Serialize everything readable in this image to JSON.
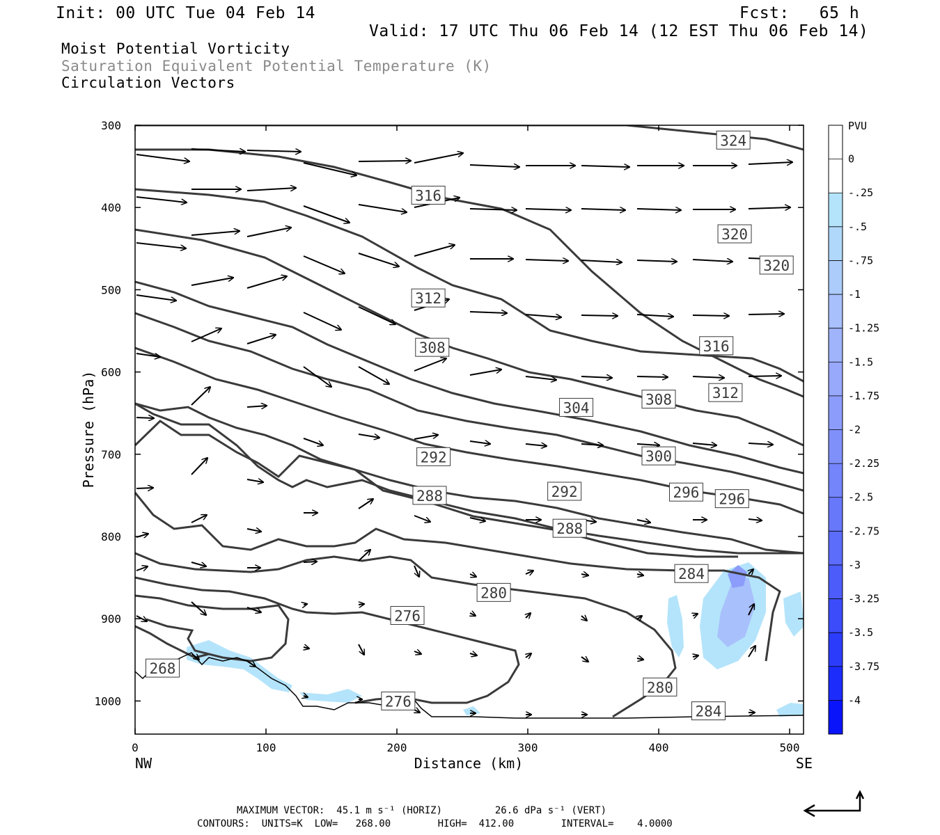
{
  "header": {
    "init": "Init: 00 UTC Tue 04 Feb 14",
    "fcst": "Fcst:   65 h",
    "valid": "Valid: 17 UTC Thu 06 Feb 14 (12 EST Thu 06 Feb 14)",
    "field1": "Moist Potential Vorticity",
    "field2": "Saturation Equivalent Potential Temperature (K)",
    "field3": "Circulation Vectors"
  },
  "footer": {
    "max_vector": "MAXIMUM VECTOR:  45.1 m s⁻¹ (HORIZ)         26.6 dPa s⁻¹ (VERT)",
    "contours": "CONTOURS:  UNITS=K  LOW=   268.00        HIGH=  412.00        INTERVAL=    4.0000"
  },
  "chart_data": {
    "type": "cross-section",
    "xlabel": "Distance (km)",
    "ylabel": "Pressure (hPa)",
    "xlim": [
      0,
      510
    ],
    "ylim": [
      1040,
      300
    ],
    "x_ticks": [
      0,
      100,
      200,
      300,
      400,
      500
    ],
    "y_ticks": [
      300,
      400,
      500,
      600,
      700,
      800,
      900,
      1000
    ],
    "x_end_labels": {
      "left": "NW",
      "right": "SE"
    },
    "colorbar": {
      "title": "PVU",
      "labels": [
        "0",
        "-.25",
        "-.5",
        "-.75",
        "-1",
        "-1.25",
        "-1.5",
        "-1.75",
        "-2",
        "-2.25",
        "-2.5",
        "-2.75",
        "-3",
        "-3.25",
        "-3.5",
        "-3.75",
        "-4"
      ],
      "colors": [
        "#ffffff",
        "#ffffff",
        "#b4e4fb",
        "#b0d8fb",
        "#acccfb",
        "#a8c0fb",
        "#a0b4fb",
        "#98a8fb",
        "#8c9cfb",
        "#8090fb",
        "#7484fb",
        "#6878fb",
        "#5c6cfb",
        "#4c5cfb",
        "#3c4cfb",
        "#2c3cfb",
        "#1c2cfb",
        "#0a14fb"
      ]
    },
    "contour_labels": [
      {
        "text": "324",
        "x": 457,
        "p": 318
      },
      {
        "text": "316",
        "x": 224,
        "p": 385
      },
      {
        "text": "320",
        "x": 458,
        "p": 432
      },
      {
        "text": "320",
        "x": 490,
        "p": 470
      },
      {
        "text": "312",
        "x": 224,
        "p": 510
      },
      {
        "text": "308",
        "x": 227,
        "p": 570
      },
      {
        "text": "316",
        "x": 444,
        "p": 568
      },
      {
        "text": "312",
        "x": 451,
        "p": 625
      },
      {
        "text": "304",
        "x": 337,
        "p": 643
      },
      {
        "text": "308",
        "x": 400,
        "p": 633
      },
      {
        "text": "292",
        "x": 228,
        "p": 703
      },
      {
        "text": "300",
        "x": 400,
        "p": 702
      },
      {
        "text": "292",
        "x": 328,
        "p": 745
      },
      {
        "text": "296",
        "x": 421,
        "p": 746
      },
      {
        "text": "296",
        "x": 456,
        "p": 754
      },
      {
        "text": "288",
        "x": 225,
        "p": 750
      },
      {
        "text": "288",
        "x": 332,
        "p": 790
      },
      {
        "text": "284",
        "x": 425,
        "p": 845
      },
      {
        "text": "280",
        "x": 274,
        "p": 868
      },
      {
        "text": "276",
        "x": 208,
        "p": 896
      },
      {
        "text": "268",
        "x": 21,
        "p": 960
      },
      {
        "text": "280",
        "x": 401,
        "p": 983
      },
      {
        "text": "276",
        "x": 201,
        "p": 1000
      },
      {
        "text": "284",
        "x": 438,
        "p": 1012
      }
    ]
  }
}
